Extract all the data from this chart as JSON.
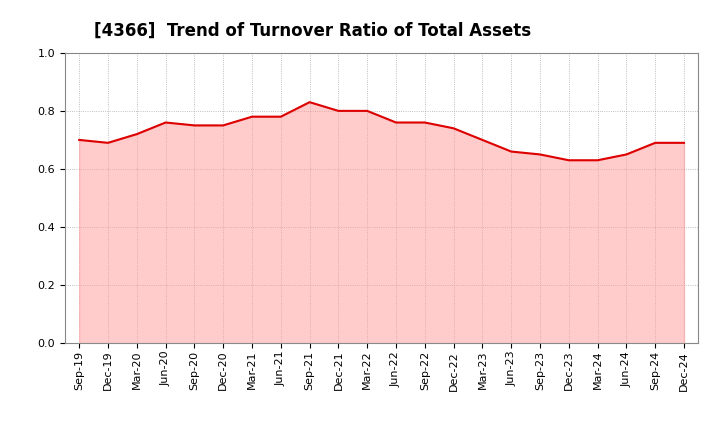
{
  "title": "[4366]  Trend of Turnover Ratio of Total Assets",
  "labels": [
    "Sep-19",
    "Dec-19",
    "Mar-20",
    "Jun-20",
    "Sep-20",
    "Dec-20",
    "Mar-21",
    "Jun-21",
    "Sep-21",
    "Dec-21",
    "Mar-22",
    "Jun-22",
    "Sep-22",
    "Dec-22",
    "Mar-23",
    "Jun-23",
    "Sep-23",
    "Dec-23",
    "Mar-24",
    "Jun-24",
    "Sep-24",
    "Dec-24"
  ],
  "values": [
    0.7,
    0.69,
    0.72,
    0.76,
    0.75,
    0.75,
    0.78,
    0.78,
    0.83,
    0.8,
    0.8,
    0.76,
    0.76,
    0.74,
    0.7,
    0.66,
    0.65,
    0.63,
    0.63,
    0.65,
    0.69,
    0.69
  ],
  "line_color": "#dd0000",
  "background_color": "#ffffff",
  "grid_color": "#aaaaaa",
  "ylim": [
    0.0,
    1.0
  ],
  "yticks": [
    0.0,
    0.2,
    0.4,
    0.6,
    0.8,
    1.0
  ],
  "title_fontsize": 12,
  "tick_fontsize": 8,
  "line_width": 1.5,
  "fill_color": "#ff9999",
  "fill_alpha": 0.5
}
